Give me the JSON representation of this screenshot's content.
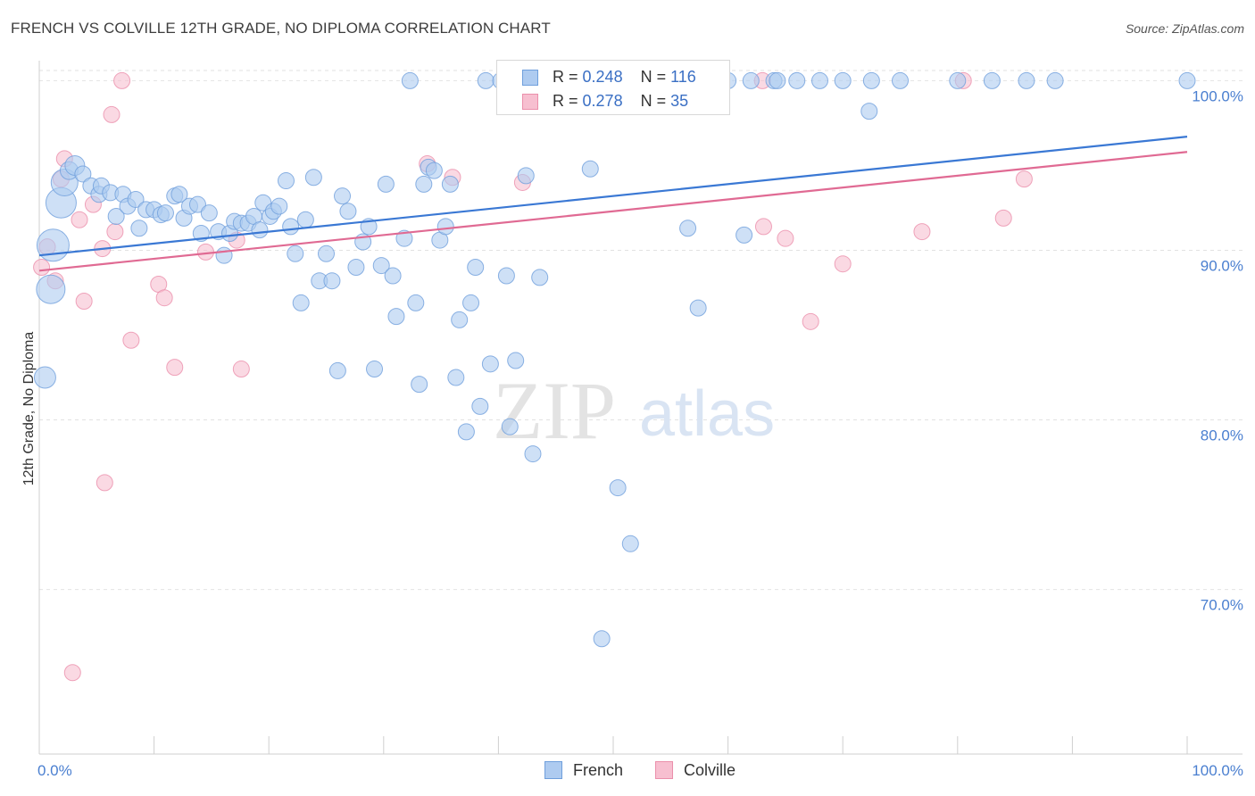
{
  "title": "FRENCH VS COLVILLE 12TH GRADE, NO DIPLOMA CORRELATION CHART",
  "source": "Source: ZipAtlas.com",
  "watermark": {
    "zip": "ZIP",
    "atlas": "atlas"
  },
  "legend_top": {
    "french": {
      "r_label": "R =",
      "r_value": "0.248",
      "n_label": "N =",
      "n_value": "116"
    },
    "colville": {
      "r_label": "R =",
      "r_value": "0.278",
      "n_label": "N =",
      "n_value": "35"
    }
  },
  "legend_bottom": {
    "french": "French",
    "colville": "Colville"
  },
  "colors": {
    "french_fill": "#aecbf0",
    "french_stroke": "#6f9fdc",
    "french_line": "#3a78d4",
    "colville_fill": "#f7bfd0",
    "colville_stroke": "#eb8fab",
    "colville_line": "#e06a93",
    "grid": "#e2e2e2",
    "tick_text": "#4a7fd0"
  },
  "chart_data": {
    "type": "scatter",
    "title": "FRENCH VS COLVILLE 12TH GRADE, NO DIPLOMA CORRELATION CHART",
    "xlabel": "",
    "ylabel": "12th Grade, No Diploma",
    "xlim": [
      0,
      100
    ],
    "ylim": [
      60.3,
      101.6
    ],
    "x_tick_labels": [
      "0.0%",
      "100.0%"
    ],
    "y_ticks": [
      70,
      80,
      90,
      100
    ],
    "y_tick_labels": [
      "70.0%",
      "80.0%",
      "90.0%",
      "100.0%"
    ],
    "grid": true,
    "legend": "top-center",
    "series": [
      {
        "name": "French",
        "R": 0.248,
        "N": 116,
        "trend": {
          "x0": 0,
          "y0": 89.7,
          "x1": 100,
          "y1": 96.7
        },
        "points": [
          [
            0.5,
            82.5,
            12
          ],
          [
            1.0,
            87.7,
            16
          ],
          [
            1.2,
            90.3,
            18
          ],
          [
            1.9,
            92.8,
            17
          ],
          [
            2.2,
            94.0,
            15
          ],
          [
            2.6,
            94.7,
            10
          ],
          [
            3.1,
            95.0,
            11
          ],
          [
            3.8,
            94.5,
            9
          ],
          [
            4.5,
            93.8,
            9
          ],
          [
            5.2,
            93.3,
            9
          ],
          [
            5.4,
            93.8,
            9
          ],
          [
            6.2,
            93.4,
            9
          ],
          [
            6.7,
            92.0,
            9
          ],
          [
            7.3,
            93.3,
            9
          ],
          [
            7.7,
            92.6,
            9
          ],
          [
            8.4,
            93.0,
            9
          ],
          [
            8.7,
            91.3,
            9
          ],
          [
            9.3,
            92.4,
            9
          ],
          [
            10.0,
            92.4,
            9
          ],
          [
            10.6,
            92.1,
            9
          ],
          [
            11.0,
            92.2,
            9
          ],
          [
            11.8,
            93.2,
            9
          ],
          [
            12.2,
            93.3,
            9
          ],
          [
            12.6,
            91.9,
            9
          ],
          [
            13.1,
            92.6,
            9
          ],
          [
            13.8,
            92.7,
            9
          ],
          [
            14.1,
            91.0,
            9
          ],
          [
            14.8,
            92.2,
            9
          ],
          [
            15.6,
            91.1,
            9
          ],
          [
            16.1,
            89.7,
            9
          ],
          [
            16.6,
            91.0,
            9
          ],
          [
            17.0,
            91.7,
            9
          ],
          [
            17.6,
            91.6,
            9
          ],
          [
            18.2,
            91.6,
            9
          ],
          [
            18.7,
            92.0,
            9
          ],
          [
            19.2,
            91.2,
            9
          ],
          [
            19.5,
            92.8,
            9
          ],
          [
            20.1,
            92.0,
            9
          ],
          [
            20.4,
            92.3,
            9
          ],
          [
            20.9,
            92.6,
            9
          ],
          [
            21.5,
            94.1,
            9
          ],
          [
            21.9,
            91.4,
            9
          ],
          [
            22.3,
            89.8,
            9
          ],
          [
            22.8,
            86.9,
            9
          ],
          [
            23.2,
            91.8,
            9
          ],
          [
            23.9,
            94.3,
            9
          ],
          [
            24.4,
            88.2,
            9
          ],
          [
            25.0,
            89.8,
            9
          ],
          [
            25.5,
            88.2,
            9
          ],
          [
            26.0,
            82.9,
            9
          ],
          [
            26.4,
            93.2,
            9
          ],
          [
            26.9,
            92.3,
            9
          ],
          [
            27.6,
            89.0,
            9
          ],
          [
            28.2,
            90.5,
            9
          ],
          [
            28.7,
            91.4,
            9
          ],
          [
            29.2,
            83.0,
            9
          ],
          [
            29.8,
            89.1,
            9
          ],
          [
            30.2,
            93.9,
            9
          ],
          [
            30.8,
            88.5,
            9
          ],
          [
            31.1,
            86.1,
            9
          ],
          [
            31.8,
            90.7,
            9
          ],
          [
            32.3,
            100.0,
            9
          ],
          [
            32.8,
            86.9,
            9
          ],
          [
            33.1,
            82.1,
            9
          ],
          [
            33.5,
            93.9,
            9
          ],
          [
            33.9,
            94.9,
            9
          ],
          [
            34.4,
            94.7,
            9
          ],
          [
            34.9,
            90.6,
            9
          ],
          [
            35.4,
            91.4,
            9
          ],
          [
            35.8,
            93.9,
            9
          ],
          [
            36.3,
            82.5,
            9
          ],
          [
            36.6,
            85.9,
            9
          ],
          [
            37.2,
            79.3,
            9
          ],
          [
            37.6,
            86.9,
            9
          ],
          [
            38.0,
            89.0,
            9
          ],
          [
            38.4,
            80.8,
            9
          ],
          [
            38.9,
            100.0,
            9
          ],
          [
            39.3,
            83.3,
            9
          ],
          [
            40.2,
            100.0,
            9
          ],
          [
            40.7,
            88.5,
            9
          ],
          [
            41.0,
            79.6,
            9
          ],
          [
            41.5,
            83.5,
            9
          ],
          [
            42.0,
            100.0,
            9
          ],
          [
            42.4,
            94.4,
            9
          ],
          [
            43.0,
            78.0,
            9
          ],
          [
            43.6,
            88.4,
            9
          ],
          [
            44.0,
            100.0,
            9
          ],
          [
            45.5,
            100.0,
            9
          ],
          [
            46.5,
            100.0,
            9
          ],
          [
            48.0,
            94.8,
            9
          ],
          [
            49.0,
            67.1,
            9
          ],
          [
            50.4,
            76.0,
            9
          ],
          [
            51.5,
            72.7,
            9
          ],
          [
            52.5,
            100.0,
            9
          ],
          [
            53.5,
            100.0,
            9
          ],
          [
            55.0,
            100.0,
            9
          ],
          [
            56.0,
            100.0,
            9
          ],
          [
            56.5,
            91.3,
            9
          ],
          [
            57.4,
            86.6,
            9
          ],
          [
            60.0,
            100.0,
            9
          ],
          [
            61.4,
            90.9,
            9
          ],
          [
            62.0,
            100.0,
            9
          ],
          [
            64.0,
            100.0,
            9
          ],
          [
            64.3,
            100.0,
            9
          ],
          [
            66.0,
            100.0,
            9
          ],
          [
            68.0,
            100.0,
            9
          ],
          [
            70.0,
            100.0,
            9
          ],
          [
            72.3,
            98.2,
            9
          ],
          [
            72.5,
            100.0,
            9
          ],
          [
            75.0,
            100.0,
            9
          ],
          [
            80.0,
            100.0,
            9
          ],
          [
            83.0,
            100.0,
            9
          ],
          [
            86.0,
            100.0,
            9
          ],
          [
            88.5,
            100.0,
            9
          ],
          [
            100.0,
            100.0,
            9
          ]
        ]
      },
      {
        "name": "Colville",
        "R": 0.278,
        "N": 35,
        "trend": {
          "x0": 0,
          "y0": 88.8,
          "x1": 100,
          "y1": 95.8
        },
        "points": [
          [
            0.2,
            89.0,
            9
          ],
          [
            0.7,
            90.2,
            9
          ],
          [
            1.4,
            88.2,
            9
          ],
          [
            1.9,
            94.2,
            9
          ],
          [
            2.2,
            95.4,
            9
          ],
          [
            2.9,
            65.1,
            9
          ],
          [
            3.5,
            91.8,
            9
          ],
          [
            3.9,
            87.0,
            9
          ],
          [
            4.7,
            92.7,
            9
          ],
          [
            5.5,
            90.1,
            9
          ],
          [
            5.7,
            76.3,
            9
          ],
          [
            6.3,
            98.0,
            9
          ],
          [
            6.6,
            91.1,
            9
          ],
          [
            7.2,
            100.0,
            9
          ],
          [
            8.0,
            84.7,
            9
          ],
          [
            10.4,
            88.0,
            9
          ],
          [
            10.9,
            87.2,
            9
          ],
          [
            11.8,
            83.1,
            9
          ],
          [
            14.5,
            89.9,
            9
          ],
          [
            17.2,
            90.6,
            9
          ],
          [
            17.6,
            83.0,
            9
          ],
          [
            33.8,
            95.1,
            9
          ],
          [
            36.0,
            94.3,
            9
          ],
          [
            42.1,
            94.0,
            9
          ],
          [
            51.0,
            100.0,
            9
          ],
          [
            59.0,
            100.0,
            9
          ],
          [
            63.0,
            100.0,
            9
          ],
          [
            63.1,
            91.4,
            9
          ],
          [
            65.0,
            90.7,
            9
          ],
          [
            67.2,
            85.8,
            9
          ],
          [
            70.0,
            89.2,
            9
          ],
          [
            76.9,
            91.1,
            9
          ],
          [
            80.5,
            100.0,
            9
          ],
          [
            84.0,
            91.9,
            9
          ],
          [
            85.8,
            94.2,
            9
          ]
        ]
      }
    ]
  }
}
